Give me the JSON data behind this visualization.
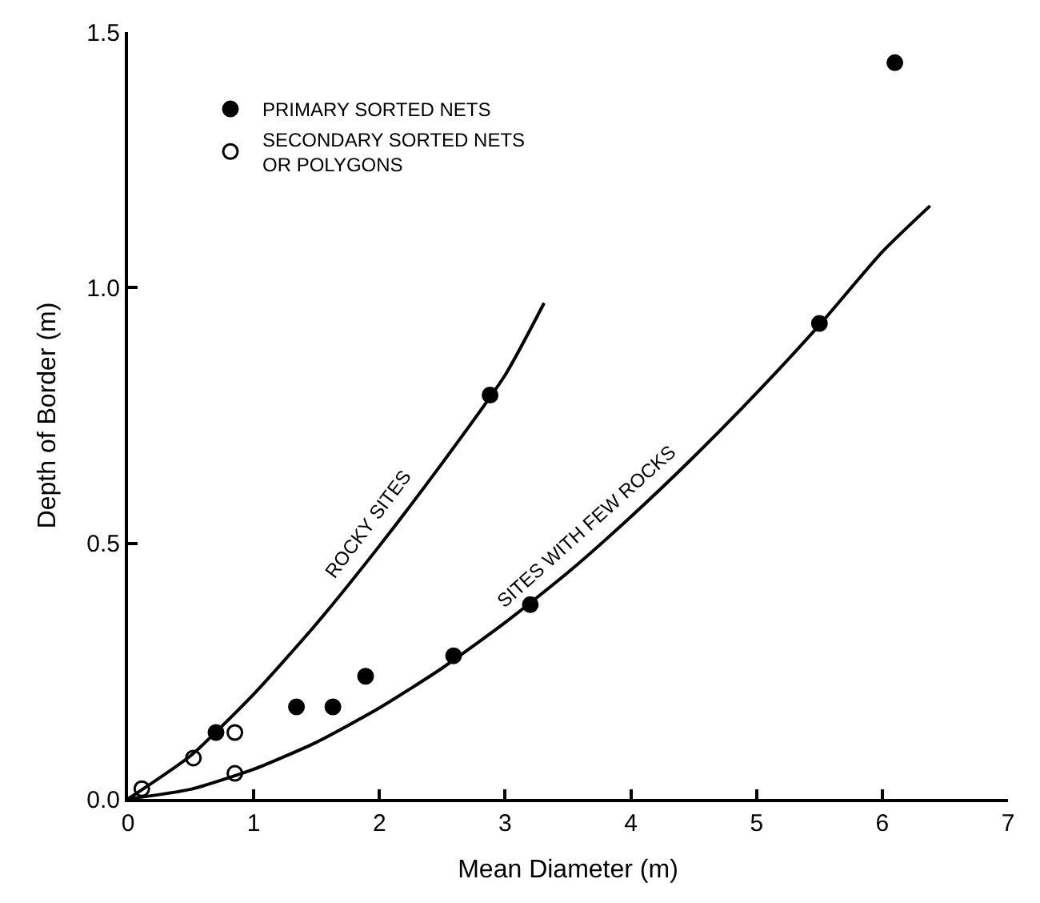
{
  "chart_data": {
    "type": "scatter",
    "xlabel": "Mean Diameter (m)",
    "ylabel": "Depth of Border (m)",
    "xlim": [
      0,
      7
    ],
    "xticks": [
      0,
      1,
      2,
      3,
      4,
      5,
      6,
      7
    ],
    "ylim": [
      0,
      1.5
    ],
    "yticks": [
      {
        "value": 0,
        "label": "0.0"
      },
      0.5,
      {
        "value": 1,
        "label": "1.0"
      },
      1.5
    ],
    "grid": false,
    "legend": "top left",
    "series": [
      {
        "name": "PRIMARY SORTED NETS",
        "color": "#000000",
        "marker": "circle",
        "x": [
          0.7,
          1.34,
          1.63,
          1.89,
          2.59,
          2.88,
          3.2,
          5.5,
          6.1
        ],
        "values": [
          0.13,
          0.18,
          0.18,
          0.24,
          0.28,
          0.79,
          0.38,
          0.93,
          1.44
        ]
      },
      {
        "name": "SECONDARY SORTED NETS\nOR POLYGONS",
        "color": "#000000",
        "marker": "circle-open",
        "x": [
          0.11,
          0.52,
          0.85,
          0.85
        ],
        "values": [
          0.02,
          0.08,
          0.13,
          0.05
        ]
      },
      {
        "name": "ROCKY SITES",
        "type": "line",
        "color": "#000000",
        "marker": "none",
        "x": [
          0,
          0.5,
          1,
          1.5,
          2,
          2.5,
          3,
          3.31
        ],
        "values": [
          0,
          0.085,
          0.205,
          0.343,
          0.495,
          0.657,
          0.829,
          0.97
        ]
      },
      {
        "name": "SITES WITH FEW ROCKS",
        "type": "line",
        "color": "#000000",
        "marker": "none",
        "x": [
          0,
          0.5,
          1,
          1.5,
          2,
          2.5,
          3,
          3.5,
          4,
          4.5,
          5,
          5.5,
          6,
          6.38
        ],
        "values": [
          0,
          0.019,
          0.058,
          0.111,
          0.178,
          0.256,
          0.345,
          0.443,
          0.552,
          0.669,
          0.794,
          0.927,
          1.07,
          1.16
        ]
      }
    ]
  }
}
